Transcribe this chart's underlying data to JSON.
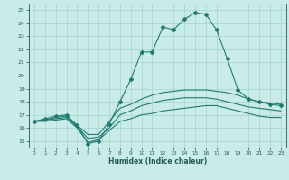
{
  "title": "",
  "xlabel": "Humidex (Indice chaleur)",
  "ylabel": "",
  "xlim": [
    -0.5,
    23.5
  ],
  "ylim": [
    14.5,
    25.5
  ],
  "yticks": [
    15,
    16,
    17,
    18,
    19,
    20,
    21,
    22,
    23,
    24,
    25
  ],
  "xticks": [
    0,
    1,
    2,
    3,
    4,
    5,
    6,
    7,
    8,
    9,
    10,
    11,
    12,
    13,
    14,
    15,
    16,
    17,
    18,
    19,
    20,
    21,
    22,
    23
  ],
  "bg_color": "#c9ece9",
  "grid_color": "#9fd4d0",
  "line_color": "#1e7a70",
  "lines": [
    {
      "x": [
        0,
        1,
        2,
        3,
        4,
        5,
        6,
        7,
        8,
        9,
        10,
        11,
        12,
        13,
        14,
        15,
        16,
        17,
        18,
        19,
        20,
        21,
        22,
        23
      ],
      "y": [
        16.5,
        16.7,
        16.9,
        17.0,
        16.2,
        14.8,
        15.0,
        16.3,
        18.0,
        19.7,
        21.8,
        21.8,
        23.7,
        23.5,
        24.3,
        24.8,
        24.7,
        23.5,
        21.3,
        18.9,
        18.2,
        18.0,
        17.8,
        17.7
      ],
      "marker": true
    },
    {
      "x": [
        0,
        1,
        2,
        3,
        4,
        5,
        6,
        7,
        8,
        9,
        10,
        11,
        12,
        13,
        14,
        15,
        16,
        17,
        18,
        19,
        20,
        21,
        22,
        23
      ],
      "y": [
        16.5,
        16.6,
        16.8,
        16.9,
        16.2,
        15.5,
        15.5,
        16.5,
        17.5,
        17.8,
        18.2,
        18.5,
        18.7,
        18.8,
        18.9,
        18.9,
        18.9,
        18.8,
        18.7,
        18.5,
        18.2,
        18.0,
        17.9,
        17.8
      ],
      "marker": false
    },
    {
      "x": [
        0,
        1,
        2,
        3,
        4,
        5,
        6,
        7,
        8,
        9,
        10,
        11,
        12,
        13,
        14,
        15,
        16,
        17,
        18,
        19,
        20,
        21,
        22,
        23
      ],
      "y": [
        16.5,
        16.6,
        16.7,
        16.8,
        16.1,
        15.2,
        15.3,
        16.0,
        17.0,
        17.3,
        17.7,
        17.9,
        18.1,
        18.2,
        18.3,
        18.3,
        18.3,
        18.2,
        18.0,
        17.8,
        17.6,
        17.5,
        17.4,
        17.3
      ],
      "marker": false
    },
    {
      "x": [
        0,
        1,
        2,
        3,
        4,
        5,
        6,
        7,
        8,
        9,
        10,
        11,
        12,
        13,
        14,
        15,
        16,
        17,
        18,
        19,
        20,
        21,
        22,
        23
      ],
      "y": [
        16.5,
        16.5,
        16.6,
        16.7,
        16.0,
        14.9,
        15.1,
        15.8,
        16.5,
        16.7,
        17.0,
        17.1,
        17.3,
        17.4,
        17.5,
        17.6,
        17.7,
        17.7,
        17.5,
        17.3,
        17.1,
        16.9,
        16.8,
        16.8
      ],
      "marker": false
    }
  ]
}
